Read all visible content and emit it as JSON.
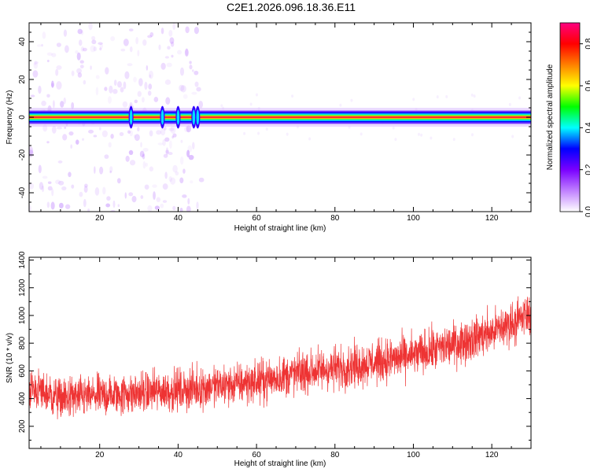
{
  "title": "C2E1.2026.096.18.36.E11",
  "chart_data": [
    {
      "type": "heatmap",
      "xlabel": "Height of straight line (km)",
      "ylabel": "Frequency (Hz)",
      "xlim": [
        2,
        130
      ],
      "ylim": [
        -50,
        50
      ],
      "x_ticks": [
        20,
        40,
        60,
        80,
        100,
        120
      ],
      "y_ticks": [
        -40,
        -20,
        0,
        20,
        40
      ],
      "colorbar": {
        "label": "Normalized spectral amplitude",
        "range": [
          0,
          0.9
        ],
        "ticks": [
          0.0,
          0.2,
          0.4,
          0.6,
          0.8
        ],
        "colors": [
          "#ffffff",
          "#c080ff",
          "#7a00ff",
          "#0000ff",
          "#00ffff",
          "#00ff00",
          "#ffff00",
          "#ff8000",
          "#ff0000",
          "#ff0080"
        ]
      },
      "main_band_frequency_hz": 0,
      "band_half_width_hz": 2.5,
      "bright_spots_km": [
        28,
        36,
        40,
        44,
        45
      ],
      "noise_region_km": [
        2,
        46
      ]
    },
    {
      "type": "line",
      "xlabel": "Height of straight line (km)",
      "ylabel": "SNR (10 * v/v)",
      "xlim": [
        2,
        130
      ],
      "ylim": [
        40,
        1420
      ],
      "x_ticks": [
        20,
        40,
        60,
        80,
        100,
        120
      ],
      "y_ticks": [
        200,
        400,
        600,
        800,
        1000,
        1200,
        1400
      ],
      "series": [
        {
          "color": "#ee3333",
          "trend_x": [
            2,
            10,
            20,
            30,
            40,
            50,
            60,
            70,
            80,
            90,
            100,
            110,
            120,
            130
          ],
          "trend_mean": [
            480,
            400,
            420,
            440,
            460,
            490,
            520,
            580,
            620,
            660,
            710,
            790,
            880,
            1010
          ],
          "spread": [
            180,
            190,
            190,
            190,
            190,
            190,
            190,
            200,
            200,
            200,
            200,
            200,
            200,
            200
          ]
        }
      ]
    }
  ]
}
